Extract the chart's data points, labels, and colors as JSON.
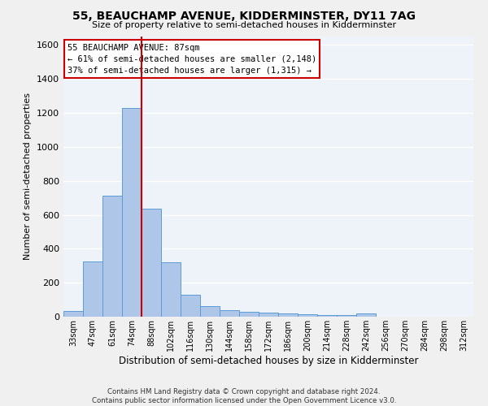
{
  "title": "55, BEAUCHAMP AVENUE, KIDDERMINSTER, DY11 7AG",
  "subtitle": "Size of property relative to semi-detached houses in Kidderminster",
  "xlabel": "Distribution of semi-detached houses by size in Kidderminster",
  "ylabel": "Number of semi-detached properties",
  "categories": [
    "33sqm",
    "47sqm",
    "61sqm",
    "74sqm",
    "88sqm",
    "102sqm",
    "116sqm",
    "130sqm",
    "144sqm",
    "158sqm",
    "172sqm",
    "186sqm",
    "200sqm",
    "214sqm",
    "228sqm",
    "242sqm",
    "256sqm",
    "270sqm",
    "284sqm",
    "298sqm",
    "312sqm"
  ],
  "values": [
    35,
    325,
    715,
    1230,
    635,
    320,
    130,
    63,
    37,
    30,
    22,
    17,
    13,
    10,
    8,
    20,
    0,
    0,
    0,
    0,
    0
  ],
  "bar_color": "#aec6e8",
  "bar_edge_color": "#5b9bd5",
  "property_bin_index": 4,
  "annotation_title": "55 BEAUCHAMP AVENUE: 87sqm",
  "annotation_line1": "← 61% of semi-detached houses are smaller (2,148)",
  "annotation_line2": "37% of semi-detached houses are larger (1,315) →",
  "vline_color": "#cc0000",
  "annotation_box_color": "#ffffff",
  "annotation_box_edge": "#cc0000",
  "background_color": "#eef3f9",
  "grid_color": "#ffffff",
  "ylim": [
    0,
    1650
  ],
  "yticks": [
    0,
    200,
    400,
    600,
    800,
    1000,
    1200,
    1400,
    1600
  ],
  "footer_line1": "Contains HM Land Registry data © Crown copyright and database right 2024.",
  "footer_line2": "Contains public sector information licensed under the Open Government Licence v3.0."
}
